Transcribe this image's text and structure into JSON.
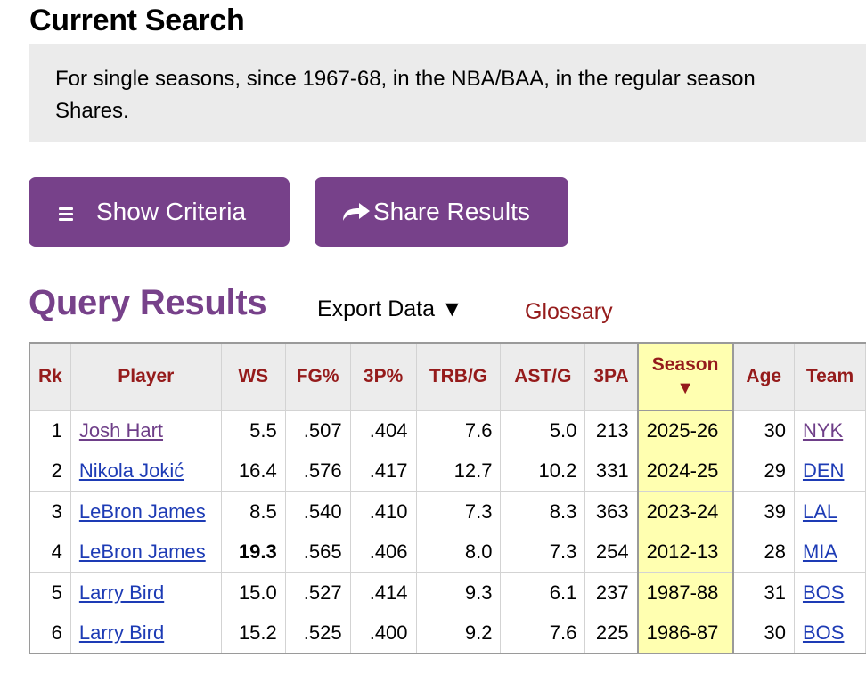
{
  "current_search": {
    "heading": "Current Search",
    "line1": "For single seasons, since 1967-68, in the NBA/BAA, in the regular season",
    "line2": "Shares."
  },
  "buttons": {
    "show_criteria": "Show Criteria",
    "share_results": "Share Results"
  },
  "results": {
    "heading": "Query Results",
    "export_label": "Export Data ▼",
    "glossary_label": "Glossary"
  },
  "table": {
    "columns": [
      "Rk",
      "Player",
      "WS",
      "FG%",
      "3P%",
      "TRB/G",
      "AST/G",
      "3PA",
      "Season",
      "Age",
      "Team"
    ],
    "sort_indicator": "▼",
    "rows": [
      {
        "rk": "1",
        "player": "Josh Hart",
        "ws": "5.5",
        "fg": ".507",
        "p3": ".404",
        "trb": "7.6",
        "ast": "5.0",
        "pa3": "213",
        "season": "2025-26",
        "age": "30",
        "team": "NYK"
      },
      {
        "rk": "2",
        "player": "Nikola Jokić",
        "ws": "16.4",
        "fg": ".576",
        "p3": ".417",
        "trb": "12.7",
        "ast": "10.2",
        "pa3": "331",
        "season": "2024-25",
        "age": "29",
        "team": "DEN"
      },
      {
        "rk": "3",
        "player": "LeBron James",
        "ws": "8.5",
        "fg": ".540",
        "p3": ".410",
        "trb": "7.3",
        "ast": "8.3",
        "pa3": "363",
        "season": "2023-24",
        "age": "39",
        "team": "LAL"
      },
      {
        "rk": "4",
        "player": "LeBron James",
        "ws": "19.3",
        "fg": ".565",
        "p3": ".406",
        "trb": "8.0",
        "ast": "7.3",
        "pa3": "254",
        "season": "2012-13",
        "age": "28",
        "team": "MIA"
      },
      {
        "rk": "5",
        "player": "Larry Bird",
        "ws": "15.0",
        "fg": ".527",
        "p3": ".414",
        "trb": "9.3",
        "ast": "6.1",
        "pa3": "237",
        "season": "1987-88",
        "age": "31",
        "team": "BOS"
      },
      {
        "rk": "6",
        "player": "Larry Bird",
        "ws": "15.2",
        "fg": ".525",
        "p3": ".400",
        "trb": "9.2",
        "ast": "7.6",
        "pa3": "225",
        "season": "1986-87",
        "age": "30",
        "team": "BOS"
      }
    ]
  },
  "colors": {
    "accent_purple": "#77418a",
    "header_red": "#951b1b",
    "link_blue": "#1d3bb5",
    "sorted_yellow": "#ffffb0"
  },
  "icons": {
    "menu": "hamburger-icon",
    "share": "share-arrow-icon"
  }
}
